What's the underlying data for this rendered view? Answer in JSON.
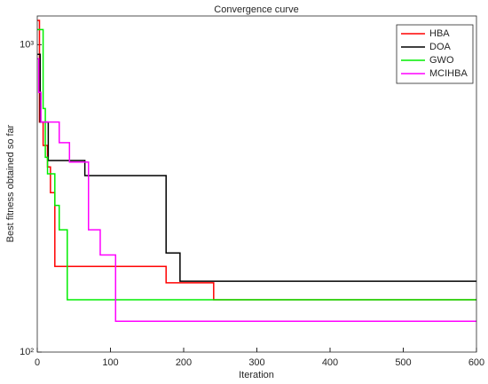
{
  "chart_data": {
    "type": "line",
    "title": "Convergence curve",
    "xlabel": "Iteration",
    "ylabel": "Best fitness obtained so far",
    "xlim": [
      0,
      600
    ],
    "xticks": [
      0,
      100,
      200,
      300,
      400,
      500,
      600
    ],
    "ylim": [
      100,
      1240
    ],
    "yscale": "log",
    "yticks": [
      {
        "value": 100,
        "label": "10²"
      },
      {
        "value": 1000,
        "label": "10³"
      }
    ],
    "grid": false,
    "legend": "upper right",
    "series": [
      {
        "name": "HBA",
        "color": "#ff0000",
        "x": [
          0,
          3,
          3,
          8,
          8,
          14,
          14,
          18,
          18,
          24,
          24,
          176,
          176,
          241,
          241,
          600
        ],
        "values": [
          1200,
          1200,
          560,
          560,
          470,
          470,
          400,
          400,
          330,
          330,
          190,
          190,
          168,
          168,
          148,
          148
        ]
      },
      {
        "name": "DOA",
        "color": "#000000",
        "x": [
          0,
          4,
          4,
          15,
          15,
          65,
          65,
          176,
          176,
          195,
          195,
          600
        ],
        "values": [
          930,
          930,
          560,
          560,
          420,
          420,
          375,
          375,
          210,
          210,
          170,
          170
        ]
      },
      {
        "name": "GWO",
        "color": "#00ee00",
        "x": [
          0,
          8,
          8,
          11,
          11,
          14,
          14,
          24,
          24,
          30,
          30,
          41,
          41,
          600
        ],
        "values": [
          1120,
          1120,
          620,
          620,
          430,
          430,
          380,
          380,
          300,
          300,
          250,
          250,
          148,
          148
        ]
      },
      {
        "name": "MCIHBA",
        "color": "#ff00ff",
        "x": [
          0,
          2,
          2,
          5,
          5,
          30,
          30,
          44,
          44,
          70,
          70,
          86,
          86,
          107,
          107,
          600
        ],
        "values": [
          900,
          900,
          700,
          700,
          560,
          560,
          480,
          480,
          415,
          415,
          250,
          250,
          207,
          207,
          126,
          126
        ]
      }
    ]
  }
}
